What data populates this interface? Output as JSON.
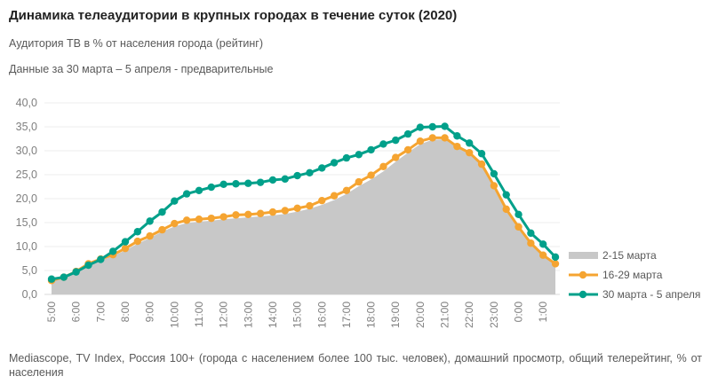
{
  "chart_data": {
    "type": "line",
    "title": "Динамика телеаудитории в крупных городах в течение суток (2020)",
    "subtitle": "Аудитория ТВ в % от населения города (рейтинг)",
    "note": "Данные за 30 марта – 5 апреля - предварительные",
    "source": "Mediascope, TV Index, Россия 100+ (города с населением более 100 тыс. человек), домашний просмотр, общий телерейтинг, % от населения",
    "ylim": [
      0,
      40
    ],
    "yticks": [
      "0,0",
      "5,0",
      "10,0",
      "15,0",
      "20,0",
      "25,0",
      "30,0",
      "35,0",
      "40,0"
    ],
    "xticks": [
      "5:00",
      "6:00",
      "7:00",
      "8:00",
      "9:00",
      "10:00",
      "11:00",
      "12:00",
      "13:00",
      "14:00",
      "15:00",
      "16:00",
      "17:00",
      "18:00",
      "19:00",
      "20:00",
      "21:00",
      "22:00",
      "23:00",
      "0:00",
      "1:00"
    ],
    "x_note": "half-hour points from 5:00 to 1:30",
    "legend_position": "right",
    "series": [
      {
        "name": "2-15 марта",
        "type": "area",
        "color": "#c8c8c8",
        "values": [
          2.7,
          3.4,
          4.5,
          5.9,
          7.1,
          8.0,
          9.2,
          10.6,
          11.8,
          13.1,
          14.2,
          14.9,
          15.2,
          15.4,
          15.7,
          15.9,
          16.1,
          16.3,
          16.5,
          16.8,
          17.3,
          17.9,
          18.7,
          19.7,
          21.0,
          22.6,
          24.0,
          25.7,
          27.7,
          29.6,
          31.4,
          32.3,
          32.4,
          30.6,
          29.3,
          26.9,
          22.5,
          17.6,
          13.9,
          10.5,
          8.0,
          6.2
        ]
      },
      {
        "name": "16-29 марта",
        "type": "line",
        "color": "#f5a431",
        "values": [
          2.9,
          3.6,
          4.8,
          6.4,
          7.4,
          8.3,
          9.6,
          11.1,
          12.2,
          13.5,
          14.8,
          15.5,
          15.7,
          15.9,
          16.2,
          16.6,
          16.7,
          16.9,
          17.2,
          17.5,
          18.0,
          18.5,
          19.6,
          20.6,
          21.7,
          23.5,
          24.9,
          26.7,
          28.6,
          30.2,
          32.0,
          32.7,
          32.7,
          30.9,
          29.6,
          27.2,
          22.7,
          17.8,
          14.1,
          10.7,
          8.2,
          6.4
        ]
      },
      {
        "name": "30 марта - 5 апреля",
        "type": "line",
        "color": "#00a08a",
        "values": [
          3.2,
          3.6,
          4.7,
          6.1,
          7.3,
          9.0,
          11.0,
          13.1,
          15.3,
          17.2,
          19.5,
          21.0,
          21.7,
          22.4,
          23.0,
          23.1,
          23.2,
          23.4,
          23.9,
          24.1,
          24.8,
          25.4,
          26.4,
          27.5,
          28.5,
          29.2,
          30.2,
          31.4,
          32.2,
          33.5,
          34.9,
          35.0,
          35.1,
          33.1,
          31.6,
          29.4,
          25.2,
          20.8,
          16.7,
          12.8,
          10.5,
          7.8
        ]
      }
    ]
  }
}
